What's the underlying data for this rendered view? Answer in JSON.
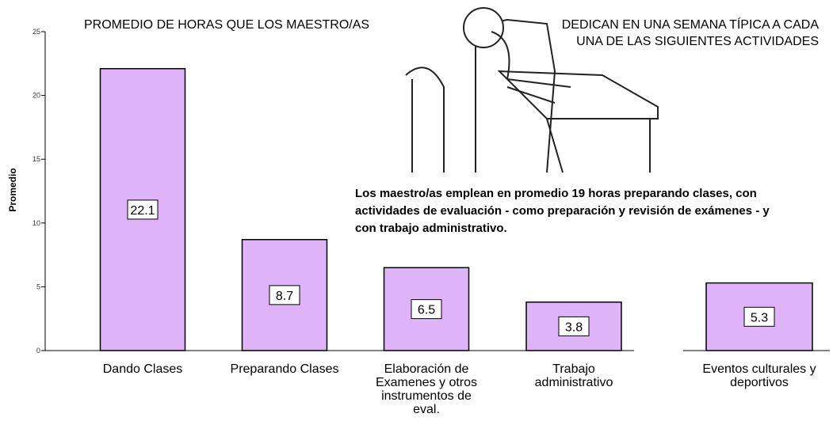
{
  "chart_data": {
    "type": "bar",
    "title": [
      "PROMEDIO DE HORAS QUE LOS MAESTRO/AS",
      "DEDICAN  EN UNA SEMANA TÍPICA A CADA UNA DE LAS SIGUIENTES ACTIVIDADES"
    ],
    "y_label": "Promedio",
    "annotation": "Los maestro/as emplean en promedio 19 horas preparando clases, con actividades de evaluación - como preparación y revisión de exámenes - y con trabajo administrativo.",
    "categories": [
      "Dando Clases",
      "Preparando Clases",
      "Elaboración de Examenes y otros instrumentos de eval.",
      "Trabajo administrativo",
      "Eventos culturales y deportivos"
    ],
    "values": [
      22.1,
      8.7,
      6.5,
      3.8,
      5.3
    ],
    "color": "#dfb3f7",
    "ylim": [
      0,
      25
    ],
    "yticks": [
      0,
      5,
      10,
      15,
      20,
      25
    ]
  }
}
